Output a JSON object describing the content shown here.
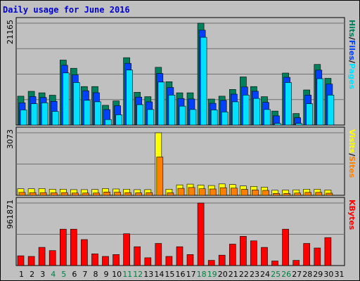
{
  "title": "Daily usage for June 2016",
  "colors": {
    "hits": "#00805c",
    "files": "#0040ff",
    "pages": "#00e0ff",
    "visits": "#ffff00",
    "sites": "#ff8000",
    "kbytes": "#ff0000",
    "weekend_label": "#008040",
    "weekday_label": "#000000"
  },
  "chart_data": [
    {
      "type": "bar",
      "name": "hits-files-pages",
      "ylabel_max": "21165",
      "ylim": [
        0,
        21165
      ],
      "right_labels": [
        "Pages",
        "/",
        "Files",
        "/",
        "Hits"
      ],
      "categories": [
        "1",
        "2",
        "3",
        "4",
        "5",
        "6",
        "7",
        "8",
        "9",
        "10",
        "11",
        "12",
        "13",
        "14",
        "15",
        "16",
        "17",
        "18",
        "19",
        "20",
        "21",
        "22",
        "23",
        "24",
        "25",
        "26",
        "27",
        "28",
        "29",
        "30",
        "31"
      ],
      "series": [
        {
          "name": "Hits",
          "values": [
            6000,
            7000,
            6700,
            6200,
            13500,
            11800,
            8000,
            8000,
            4100,
            5000,
            14000,
            6800,
            5900,
            12000,
            9000,
            6700,
            6700,
            21165,
            5400,
            6000,
            7400,
            10000,
            8000,
            5900,
            2900,
            10800,
            2400,
            7300,
            12600,
            9700,
            0
          ]
        },
        {
          "name": "Files",
          "values": [
            5200,
            6500,
            6300,
            5500,
            13000,
            11000,
            7700,
            7300,
            3800,
            4600,
            13400,
            6400,
            5400,
            11300,
            8400,
            6100,
            6000,
            20300,
            5100,
            5700,
            7000,
            8500,
            7600,
            5300,
            2500,
            10500,
            2100,
            6800,
            12000,
            9100,
            0
          ]
        },
        {
          "name": "Pages",
          "values": [
            4300,
            5600,
            5800,
            4000,
            12000,
            10000,
            6300,
            6000,
            2300,
            3300,
            12600,
            5400,
            4400,
            10100,
            7400,
            5100,
            4400,
            19400,
            4300,
            3900,
            6000,
            7400,
            6700,
            4400,
            1500,
            10000,
            1500,
            5600,
            10800,
            7400,
            0
          ]
        }
      ]
    },
    {
      "type": "bar",
      "name": "visits-sites",
      "ylabel_max": "3073",
      "ylim": [
        0,
        3073
      ],
      "right_labels": [
        "Sites",
        "/",
        "Visits"
      ],
      "categories": [
        "1",
        "2",
        "3",
        "4",
        "5",
        "6",
        "7",
        "8",
        "9",
        "10",
        "11",
        "12",
        "13",
        "14",
        "15",
        "16",
        "17",
        "18",
        "19",
        "20",
        "21",
        "22",
        "23",
        "24",
        "25",
        "26",
        "27",
        "28",
        "29",
        "30",
        "31"
      ],
      "series": [
        {
          "name": "Visits",
          "values": [
            320,
            320,
            330,
            300,
            300,
            280,
            280,
            290,
            330,
            310,
            300,
            280,
            280,
            3073,
            300,
            510,
            550,
            500,
            480,
            560,
            530,
            460,
            440,
            400,
            250,
            260,
            270,
            300,
            300,
            260,
            0
          ]
        },
        {
          "name": "Sites",
          "values": [
            280,
            270,
            270,
            260,
            270,
            250,
            250,
            250,
            300,
            290,
            270,
            260,
            270,
            2020,
            260,
            480,
            520,
            460,
            450,
            510,
            490,
            430,
            400,
            380,
            230,
            230,
            250,
            280,
            280,
            240,
            0
          ]
        }
      ]
    },
    {
      "type": "bar",
      "name": "kbytes",
      "ylabel_max": "961871",
      "ylim": [
        0,
        961871
      ],
      "right_labels": [
        "KBytes"
      ],
      "categories": [
        "1",
        "2",
        "3",
        "4",
        "5",
        "6",
        "7",
        "8",
        "9",
        "10",
        "11",
        "12",
        "13",
        "14",
        "15",
        "16",
        "17",
        "18",
        "19",
        "20",
        "21",
        "22",
        "23",
        "24",
        "25",
        "26",
        "27",
        "28",
        "29",
        "30",
        "31"
      ],
      "series": [
        {
          "name": "KBytes",
          "values": [
            150000,
            140000,
            280000,
            230000,
            560000,
            560000,
            400000,
            180000,
            140000,
            170000,
            490000,
            290000,
            120000,
            340000,
            140000,
            290000,
            170000,
            961871,
            80000,
            160000,
            330000,
            450000,
            380000,
            280000,
            70000,
            560000,
            80000,
            340000,
            270000,
            430000,
            0
          ]
        }
      ]
    }
  ],
  "weekend_days": [
    4,
    5,
    11,
    12,
    18,
    19,
    25,
    26
  ]
}
